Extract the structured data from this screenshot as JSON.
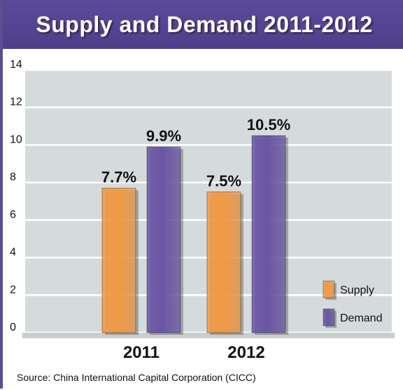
{
  "title": "Supply and Demand 2011-2012",
  "source": "Source: China International Capital Corporation (CICC)",
  "colors": {
    "supply": "#f39a45",
    "demand": "#6a56a5",
    "plot_bg": "#d5dbdd",
    "title_bar": "#5444932"
  },
  "chart_data": {
    "type": "bar",
    "title": "Supply and Demand 2011-2012",
    "xlabel": "",
    "ylabel": "",
    "categories": [
      "2011",
      "2012"
    ],
    "ylim": [
      0,
      14
    ],
    "yticks": [
      0,
      2,
      4,
      6,
      8,
      10,
      12,
      14
    ],
    "grid": true,
    "legend_position": "bottom-right",
    "series": [
      {
        "name": "Supply",
        "values": [
          7.7,
          7.5
        ],
        "labels": [
          "7.7%",
          "7.5%"
        ]
      },
      {
        "name": "Demand",
        "values": [
          9.9,
          10.5
        ],
        "labels": [
          "9.9%",
          "10.5%"
        ]
      }
    ]
  }
}
